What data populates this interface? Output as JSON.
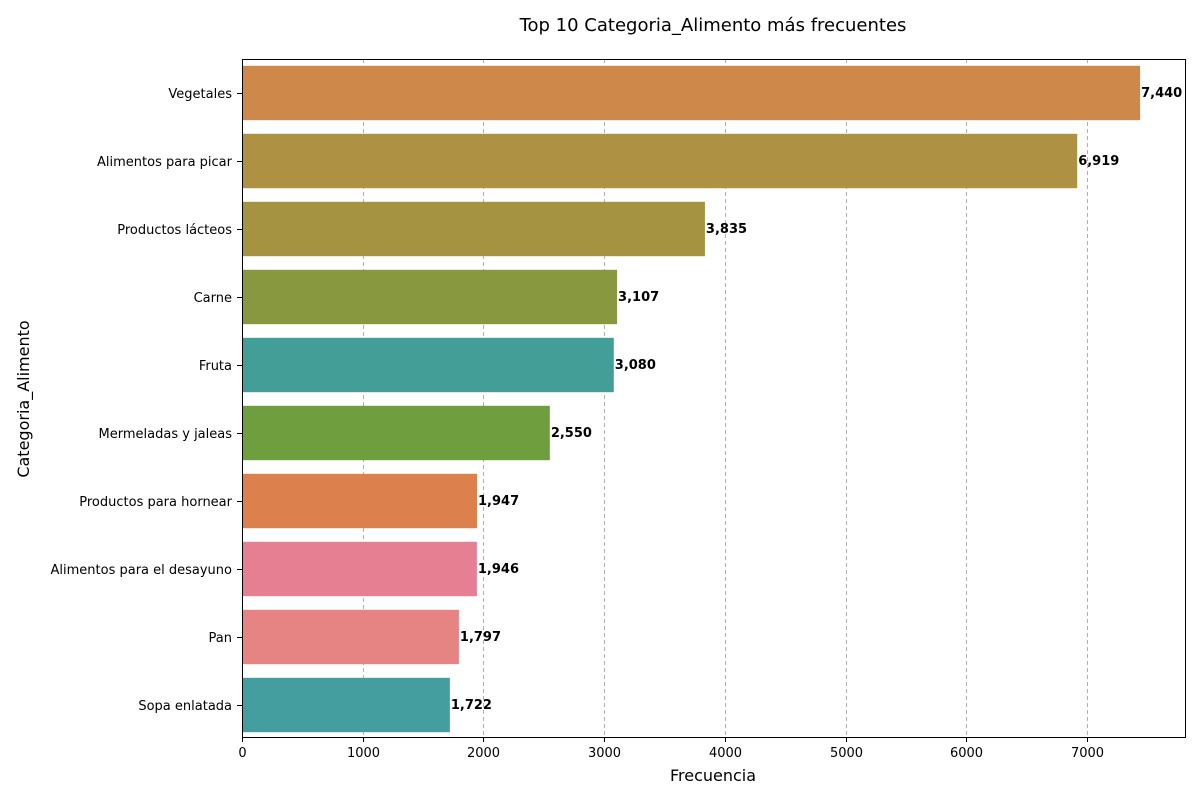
{
  "chart_data": {
    "type": "bar",
    "orientation": "horizontal",
    "title": "Top 10 Categoria_Alimento más frecuentes",
    "xlabel": "Frecuencia",
    "ylabel": "Categoria_Alimento",
    "categories": [
      "Vegetales",
      "Alimentos para picar",
      "Productos lácteos",
      "Carne",
      "Fruta",
      "Mermeladas y jaleas",
      "Productos para hornear",
      "Alimentos para el desayuno",
      "Pan",
      "Sopa enlatada"
    ],
    "values": [
      7440,
      6919,
      3835,
      3107,
      3080,
      2550,
      1947,
      1946,
      1797,
      1722
    ],
    "value_labels": [
      "7,440",
      "6,919",
      "3,835",
      "3,107",
      "3,080",
      "2,550",
      "1,947",
      "1,946",
      "1,797",
      "1,722"
    ],
    "colors": [
      "#ce8849",
      "#ae9142",
      "#a59341",
      "#87983f",
      "#449e98",
      "#6f9e3e",
      "#dc814d",
      "#e67f92",
      "#e68383",
      "#449ea0"
    ],
    "xlim": [
      0,
      7812
    ],
    "xticks": [
      0,
      1000,
      2000,
      3000,
      4000,
      5000,
      6000,
      7000
    ],
    "xtick_labels": [
      "0",
      "1000",
      "2000",
      "3000",
      "4000",
      "5000",
      "6000",
      "7000"
    ],
    "grid": "x-dashed",
    "legend": "none"
  }
}
